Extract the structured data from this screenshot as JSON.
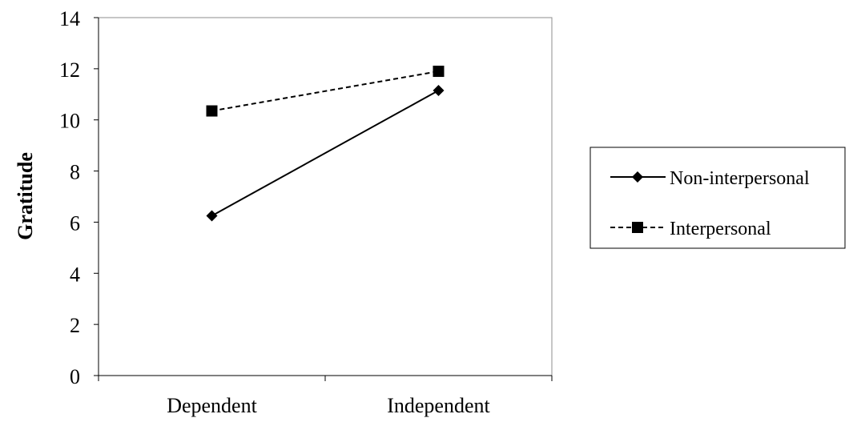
{
  "chart_data": {
    "type": "line",
    "title": "",
    "xlabel": "",
    "ylabel": "Gratitude",
    "categories": [
      "Dependent",
      "Independent"
    ],
    "ylim": [
      0,
      14
    ],
    "yticks": [
      0,
      2,
      4,
      6,
      8,
      10,
      12,
      14
    ],
    "grid": false,
    "legend_position": "right",
    "series": [
      {
        "name": "Non-interpersonal",
        "values": [
          6.25,
          11.15
        ],
        "marker": "diamond",
        "line_style": "solid",
        "color": "#000000"
      },
      {
        "name": "Interpersonal",
        "values": [
          10.35,
          11.9
        ],
        "marker": "square",
        "line_style": "dashed",
        "color": "#000000"
      }
    ]
  }
}
